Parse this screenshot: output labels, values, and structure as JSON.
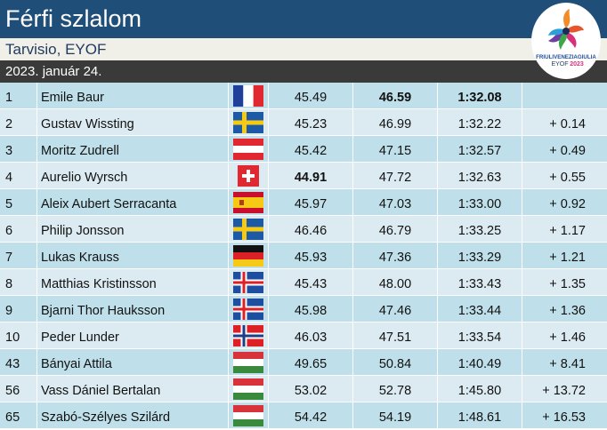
{
  "header": {
    "title": "Férfi szlalom",
    "venue": "Tarvisio, EYOF",
    "date": "2023. január 24."
  },
  "logo": {
    "line1": "FRIULIVENEZIAGIULIA",
    "line2": "EYOF",
    "line3": "2023"
  },
  "colors": {
    "title_bg": "#1f4e79",
    "date_bg": "#3a3a3a",
    "row_odd": "#bfe0ea",
    "row_even": "#dcebf2"
  },
  "results": [
    {
      "rank": "1",
      "name": "Emile Baur",
      "flag": "fr",
      "run1": "45.49",
      "run2": "46.59",
      "total": "1:32.08",
      "diff": "",
      "bold_run1": false,
      "bold_run2": true,
      "bold_total": true
    },
    {
      "rank": "2",
      "name": "Gustav Wissting",
      "flag": "se",
      "run1": "45.23",
      "run2": "46.99",
      "total": "1:32.22",
      "diff": "+ 0.14",
      "bold_run1": false,
      "bold_run2": false,
      "bold_total": false
    },
    {
      "rank": "3",
      "name": "Moritz Zudrell",
      "flag": "at",
      "run1": "45.42",
      "run2": "47.15",
      "total": "1:32.57",
      "diff": "+ 0.49",
      "bold_run1": false,
      "bold_run2": false,
      "bold_total": false
    },
    {
      "rank": "4",
      "name": "Aurelio Wyrsch",
      "flag": "ch",
      "run1": "44.91",
      "run2": "47.72",
      "total": "1:32.63",
      "diff": "+ 0.55",
      "bold_run1": true,
      "bold_run2": false,
      "bold_total": false
    },
    {
      "rank": "5",
      "name": "Aleix Aubert Serracanta",
      "flag": "es",
      "run1": "45.97",
      "run2": "47.03",
      "total": "1:33.00",
      "diff": "+ 0.92",
      "bold_run1": false,
      "bold_run2": false,
      "bold_total": false
    },
    {
      "rank": "6",
      "name": "Philip Jonsson",
      "flag": "se",
      "run1": "46.46",
      "run2": "46.79",
      "total": "1:33.25",
      "diff": "+ 1.17",
      "bold_run1": false,
      "bold_run2": false,
      "bold_total": false
    },
    {
      "rank": "7",
      "name": "Lukas Krauss",
      "flag": "de",
      "run1": "45.93",
      "run2": "47.36",
      "total": "1:33.29",
      "diff": "+ 1.21",
      "bold_run1": false,
      "bold_run2": false,
      "bold_total": false
    },
    {
      "rank": "8",
      "name": "Matthias Kristinsson",
      "flag": "is",
      "run1": "45.43",
      "run2": "48.00",
      "total": "1:33.43",
      "diff": "+ 1.35",
      "bold_run1": false,
      "bold_run2": false,
      "bold_total": false
    },
    {
      "rank": "9",
      "name": "Bjarni Thor Hauksson",
      "flag": "is",
      "run1": "45.98",
      "run2": "47.46",
      "total": "1:33.44",
      "diff": "+ 1.36",
      "bold_run1": false,
      "bold_run2": false,
      "bold_total": false
    },
    {
      "rank": "10",
      "name": "Peder Lunder",
      "flag": "no",
      "run1": "46.03",
      "run2": "47.51",
      "total": "1:33.54",
      "diff": "+ 1.46",
      "bold_run1": false,
      "bold_run2": false,
      "bold_total": false
    },
    {
      "rank": "43",
      "name": "Bányai Attila",
      "flag": "hu",
      "run1": "49.65",
      "run2": "50.84",
      "total": "1:40.49",
      "diff": "+ 8.41",
      "bold_run1": false,
      "bold_run2": false,
      "bold_total": false
    },
    {
      "rank": "56",
      "name": "Vass Dániel Bertalan",
      "flag": "hu",
      "run1": "53.02",
      "run2": "52.78",
      "total": "1:45.80",
      "diff": "+ 13.72",
      "bold_run1": false,
      "bold_run2": false,
      "bold_total": false
    },
    {
      "rank": "65",
      "name": "Szabó-Szélyes Szilárd",
      "flag": "hu",
      "run1": "54.42",
      "run2": "54.19",
      "total": "1:48.61",
      "diff": "+ 16.53",
      "bold_run1": false,
      "bold_run2": false,
      "bold_total": false
    }
  ]
}
